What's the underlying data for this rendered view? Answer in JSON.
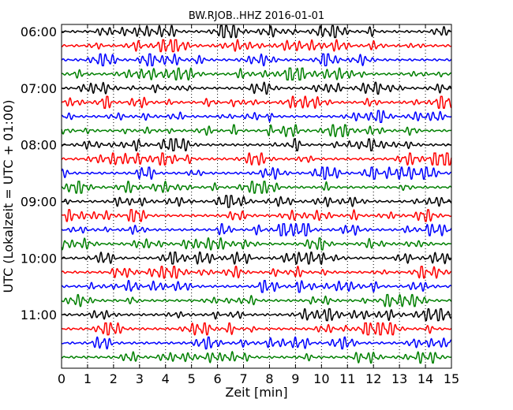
{
  "chart_data": {
    "type": "line",
    "title": "BW.RJOB..HHZ 2016-01-01",
    "xlabel": "Zeit  [min]",
    "ylabel": "UTC (Lokalzeit = UTC + 01:00)",
    "xlim": [
      0,
      15
    ],
    "x_ticks": [
      "0",
      "1",
      "2",
      "3",
      "4",
      "5",
      "6",
      "7",
      "8",
      "9",
      "10",
      "11",
      "12",
      "13",
      "14",
      "15"
    ],
    "y_tick_labels": [
      "06:00",
      "07:00",
      "08:00",
      "09:00",
      "10:00",
      "11:00"
    ],
    "grid": "vertical dotted",
    "trace_interval_minutes": 15,
    "start_time": "06:00",
    "trace_count": 24,
    "color_cycle": [
      "#000000",
      "#ff0000",
      "#0000ff",
      "#008000"
    ]
  }
}
